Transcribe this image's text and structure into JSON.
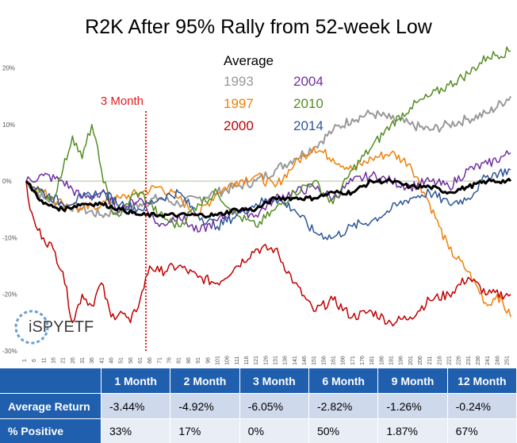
{
  "chart_data": {
    "type": "line",
    "title": "R2K After 95% Rally from 52-week Low",
    "xlabel": "",
    "ylabel": "",
    "xlim": [
      1,
      252
    ],
    "ylim": [
      -30,
      25
    ],
    "x_ticks": [
      1,
      6,
      11,
      16,
      21,
      26,
      31,
      36,
      41,
      46,
      51,
      56,
      61,
      66,
      71,
      76,
      81,
      86,
      91,
      96,
      101,
      106,
      111,
      116,
      121,
      126,
      131,
      136,
      141,
      146,
      151,
      156,
      161,
      166,
      171,
      176,
      181,
      186,
      191,
      196,
      201,
      206,
      211,
      216,
      221,
      226,
      231,
      236,
      241,
      246,
      251
    ],
    "y_ticks": [
      20,
      10,
      0,
      -10,
      -20,
      -30
    ],
    "y_tick_labels": [
      "20%",
      "10%",
      "0%",
      "-10%",
      "-20%",
      "-30%"
    ],
    "legend_title": "Average",
    "grid": false,
    "annotations": [
      {
        "text": "3 Month",
        "x": 63
      }
    ],
    "series": [
      {
        "name": "1993",
        "color": "#999999",
        "width": 2,
        "x": [
          1,
          10,
          20,
          30,
          40,
          50,
          60,
          70,
          80,
          90,
          100,
          110,
          120,
          130,
          140,
          150,
          160,
          170,
          180,
          190,
          200,
          210,
          220,
          230,
          240,
          252
        ],
        "values": [
          0,
          -3,
          -4,
          -5,
          -6,
          -5,
          -4,
          -3,
          -4,
          -3,
          -2,
          -1,
          0,
          2,
          4,
          6,
          9,
          11,
          12,
          11,
          10,
          9,
          10,
          11,
          12,
          15
        ]
      },
      {
        "name": "1997",
        "color": "#f07f09",
        "width": 1.5,
        "x": [
          1,
          10,
          20,
          30,
          40,
          50,
          60,
          70,
          80,
          90,
          100,
          110,
          120,
          130,
          140,
          150,
          160,
          170,
          180,
          190,
          200,
          210,
          215,
          220,
          230,
          240,
          245,
          252
        ],
        "values": [
          0,
          -2,
          -4,
          -5,
          -4,
          -3,
          -2,
          -1,
          -3,
          -6,
          -2,
          0,
          1,
          -1,
          3,
          6,
          4,
          2,
          4,
          5,
          3,
          -4,
          -8,
          -12,
          -16,
          -22,
          -20,
          -24
        ]
      },
      {
        "name": "2000",
        "color": "#c00000",
        "width": 1.5,
        "x": [
          1,
          3,
          6,
          10,
          15,
          20,
          25,
          30,
          35,
          40,
          45,
          50,
          55,
          60,
          65,
          70,
          80,
          90,
          100,
          110,
          120,
          130,
          140,
          150,
          160,
          170,
          180,
          190,
          200,
          210,
          220,
          230,
          240,
          252
        ],
        "values": [
          0,
          -5,
          -8,
          -10,
          -12,
          -16,
          -25,
          -20,
          -22,
          -18,
          -24,
          -23,
          -25,
          -21,
          -15,
          -16,
          -15,
          -17,
          -18,
          -15,
          -12,
          -12,
          -18,
          -23,
          -21,
          -24,
          -23,
          -25,
          -24,
          -21,
          -20,
          -17,
          -20,
          -20
        ]
      },
      {
        "name": "2004",
        "color": "#7030a0",
        "width": 1.5,
        "x": [
          1,
          10,
          20,
          30,
          40,
          50,
          60,
          70,
          80,
          90,
          100,
          110,
          120,
          130,
          140,
          150,
          160,
          170,
          180,
          190,
          200,
          210,
          220,
          230,
          240,
          252
        ],
        "values": [
          0,
          1,
          0,
          -3,
          -2,
          -5,
          -3,
          -8,
          -6,
          -9,
          -7,
          -5,
          -6,
          -3,
          -2,
          -1,
          -3,
          0,
          1,
          0,
          -1,
          0,
          -1,
          2,
          3,
          5
        ]
      },
      {
        "name": "2010",
        "color": "#538d22",
        "width": 1.5,
        "x": [
          1,
          8,
          15,
          20,
          25,
          30,
          35,
          40,
          45,
          50,
          55,
          60,
          65,
          70,
          80,
          90,
          100,
          110,
          120,
          130,
          140,
          150,
          160,
          170,
          180,
          190,
          200,
          210,
          220,
          230,
          240,
          252
        ],
        "values": [
          0,
          -2,
          -3,
          2,
          8,
          4,
          10,
          2,
          -5,
          -6,
          -3,
          -2,
          -4,
          -6,
          -8,
          -4,
          -2,
          -6,
          -8,
          -5,
          -2,
          0,
          -4,
          2,
          6,
          10,
          13,
          15,
          17,
          19,
          22,
          23
        ]
      },
      {
        "name": "2014",
        "color": "#2f5597",
        "width": 1.5,
        "x": [
          1,
          10,
          20,
          30,
          40,
          50,
          60,
          70,
          80,
          90,
          100,
          110,
          120,
          130,
          140,
          150,
          160,
          170,
          180,
          190,
          200,
          210,
          220,
          230,
          240,
          252
        ],
        "values": [
          0,
          -2,
          -4,
          -3,
          -2,
          -4,
          -5,
          -3,
          -2,
          -6,
          -8,
          -6,
          -4,
          -3,
          -5,
          -9,
          -10,
          -8,
          -7,
          -5,
          -3,
          -2,
          -4,
          -3,
          1,
          2
        ]
      },
      {
        "name": "Average",
        "color": "#000000",
        "width": 3,
        "x": [
          1,
          10,
          20,
          30,
          40,
          50,
          60,
          70,
          80,
          90,
          100,
          110,
          120,
          130,
          140,
          150,
          160,
          170,
          180,
          190,
          200,
          210,
          220,
          230,
          240,
          252
        ],
        "values": [
          0,
          -4,
          -5,
          -4,
          -4,
          -5,
          -6,
          -6,
          -6,
          -6,
          -6,
          -5,
          -5,
          -3,
          -3,
          -3,
          -2,
          -2,
          0,
          0,
          -1,
          -1,
          -2,
          -1,
          0,
          0
        ]
      }
    ]
  },
  "logo": {
    "text": "iSPYETF"
  },
  "table": {
    "headers": [
      "",
      "1 Month",
      "2 Month",
      "3 Month",
      "6 Month",
      "9 Month",
      "12 Month"
    ],
    "rows": [
      {
        "label": "Average Return",
        "values": [
          "-3.44%",
          "-4.92%",
          "-6.05%",
          "-2.82%",
          "-1.26%",
          "-0.24%"
        ]
      },
      {
        "label": "% Positive",
        "values": [
          "33%",
          "17%",
          "0%",
          "50%",
          "1.87%",
          "67%"
        ]
      }
    ]
  }
}
